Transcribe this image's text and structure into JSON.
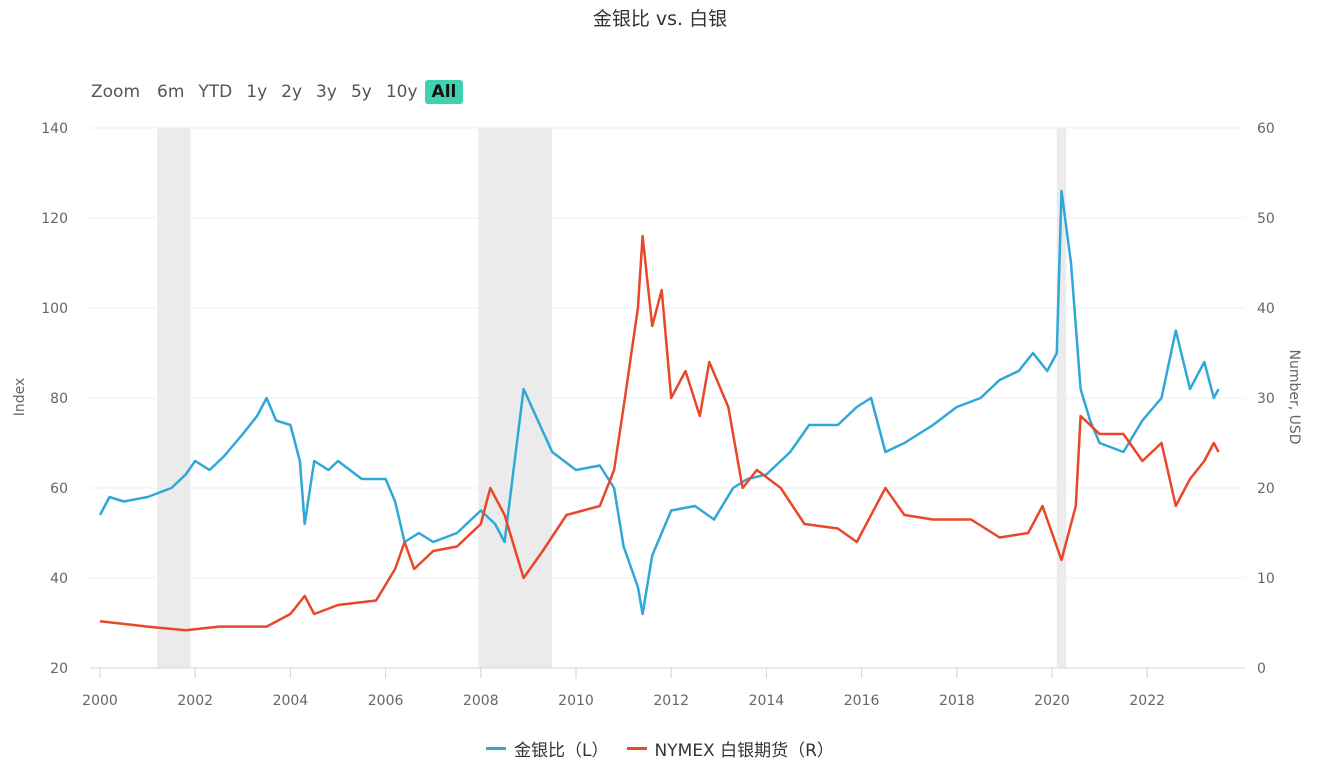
{
  "chart_data": {
    "type": "line",
    "title": "金银比 vs. 白银",
    "range_selector": {
      "label": "Zoom",
      "buttons": [
        "6m",
        "YTD",
        "1y",
        "2y",
        "3y",
        "5y",
        "10y",
        "All"
      ],
      "selected": "All"
    },
    "xlim": [
      2000,
      2023.8
    ],
    "x_ticks": [
      "2000",
      "2002",
      "2004",
      "2006",
      "2008",
      "2010",
      "2012",
      "2014",
      "2016",
      "2018",
      "2020",
      "2022"
    ],
    "y_left": {
      "label": "Index",
      "lim": [
        20,
        140
      ],
      "ticks": [
        "20",
        "40",
        "60",
        "80",
        "100",
        "120",
        "140"
      ]
    },
    "y_right": {
      "label": "Number, USD",
      "lim": [
        0,
        60
      ],
      "ticks": [
        "0",
        "10",
        "20",
        "30",
        "40",
        "50",
        "60"
      ]
    },
    "grid": true,
    "legend_position": "bottom",
    "shaded_periods": [
      [
        2001.2,
        2001.9
      ],
      [
        2007.95,
        2009.5
      ],
      [
        2020.1,
        2020.3
      ]
    ],
    "colors": {
      "ratio": "#2fa8d8",
      "silver": "#e8472a",
      "shade": "#ebebeb"
    },
    "series": [
      {
        "name": "金银比（L）",
        "axis": "left",
        "points": [
          [
            2000.0,
            54
          ],
          [
            2000.2,
            58
          ],
          [
            2000.5,
            57
          ],
          [
            2001.0,
            58
          ],
          [
            2001.5,
            60
          ],
          [
            2001.8,
            63
          ],
          [
            2002.0,
            66
          ],
          [
            2002.3,
            64
          ],
          [
            2002.6,
            67
          ],
          [
            2003.0,
            72
          ],
          [
            2003.3,
            76
          ],
          [
            2003.5,
            80
          ],
          [
            2003.7,
            75
          ],
          [
            2004.0,
            74
          ],
          [
            2004.2,
            66
          ],
          [
            2004.3,
            52
          ],
          [
            2004.5,
            66
          ],
          [
            2004.8,
            64
          ],
          [
            2005.0,
            66
          ],
          [
            2005.5,
            62
          ],
          [
            2006.0,
            62
          ],
          [
            2006.2,
            57
          ],
          [
            2006.4,
            48
          ],
          [
            2006.7,
            50
          ],
          [
            2007.0,
            48
          ],
          [
            2007.5,
            50
          ],
          [
            2008.0,
            55
          ],
          [
            2008.3,
            52
          ],
          [
            2008.5,
            48
          ],
          [
            2008.7,
            65
          ],
          [
            2008.9,
            82
          ],
          [
            2009.2,
            75
          ],
          [
            2009.5,
            68
          ],
          [
            2010.0,
            64
          ],
          [
            2010.5,
            65
          ],
          [
            2010.8,
            60
          ],
          [
            2011.0,
            47
          ],
          [
            2011.3,
            38
          ],
          [
            2011.4,
            32
          ],
          [
            2011.6,
            45
          ],
          [
            2012.0,
            55
          ],
          [
            2012.5,
            56
          ],
          [
            2012.9,
            53
          ],
          [
            2013.3,
            60
          ],
          [
            2013.6,
            62
          ],
          [
            2014.0,
            63
          ],
          [
            2014.5,
            68
          ],
          [
            2014.9,
            74
          ],
          [
            2015.5,
            74
          ],
          [
            2015.9,
            78
          ],
          [
            2016.2,
            80
          ],
          [
            2016.5,
            68
          ],
          [
            2016.9,
            70
          ],
          [
            2017.5,
            74
          ],
          [
            2018.0,
            78
          ],
          [
            2018.5,
            80
          ],
          [
            2018.9,
            84
          ],
          [
            2019.3,
            86
          ],
          [
            2019.6,
            90
          ],
          [
            2019.9,
            86
          ],
          [
            2020.1,
            90
          ],
          [
            2020.2,
            126
          ],
          [
            2020.4,
            110
          ],
          [
            2020.6,
            82
          ],
          [
            2020.8,
            75
          ],
          [
            2021.0,
            70
          ],
          [
            2021.5,
            68
          ],
          [
            2021.9,
            75
          ],
          [
            2022.3,
            80
          ],
          [
            2022.6,
            95
          ],
          [
            2022.9,
            82
          ],
          [
            2023.2,
            88
          ],
          [
            2023.4,
            80
          ],
          [
            2023.5,
            82
          ]
        ]
      },
      {
        "name": "NYMEX 白银期货（R）",
        "axis": "right",
        "points": [
          [
            2000.0,
            5.2
          ],
          [
            2001.0,
            4.6
          ],
          [
            2001.8,
            4.2
          ],
          [
            2002.5,
            4.6
          ],
          [
            2003.5,
            4.6
          ],
          [
            2004.0,
            6.0
          ],
          [
            2004.3,
            8.0
          ],
          [
            2004.5,
            6.0
          ],
          [
            2005.0,
            7.0
          ],
          [
            2005.8,
            7.5
          ],
          [
            2006.2,
            11
          ],
          [
            2006.4,
            14
          ],
          [
            2006.6,
            11
          ],
          [
            2007.0,
            13
          ],
          [
            2007.5,
            13.5
          ],
          [
            2008.0,
            16
          ],
          [
            2008.2,
            20
          ],
          [
            2008.5,
            17
          ],
          [
            2008.9,
            10
          ],
          [
            2009.3,
            13
          ],
          [
            2009.8,
            17
          ],
          [
            2010.5,
            18
          ],
          [
            2010.8,
            22
          ],
          [
            2011.0,
            29
          ],
          [
            2011.3,
            40
          ],
          [
            2011.4,
            48
          ],
          [
            2011.6,
            38
          ],
          [
            2011.8,
            42
          ],
          [
            2012.0,
            30
          ],
          [
            2012.3,
            33
          ],
          [
            2012.6,
            28
          ],
          [
            2012.8,
            34
          ],
          [
            2013.2,
            29
          ],
          [
            2013.5,
            20
          ],
          [
            2013.8,
            22
          ],
          [
            2014.3,
            20
          ],
          [
            2014.8,
            16
          ],
          [
            2015.5,
            15.5
          ],
          [
            2015.9,
            14
          ],
          [
            2016.5,
            20
          ],
          [
            2016.9,
            17
          ],
          [
            2017.5,
            16.5
          ],
          [
            2018.3,
            16.5
          ],
          [
            2018.9,
            14.5
          ],
          [
            2019.5,
            15
          ],
          [
            2019.8,
            18
          ],
          [
            2020.2,
            12
          ],
          [
            2020.5,
            18
          ],
          [
            2020.6,
            28
          ],
          [
            2021.0,
            26
          ],
          [
            2021.5,
            26
          ],
          [
            2021.9,
            23
          ],
          [
            2022.3,
            25
          ],
          [
            2022.6,
            18
          ],
          [
            2022.9,
            21
          ],
          [
            2023.2,
            23
          ],
          [
            2023.4,
            25
          ],
          [
            2023.5,
            24
          ]
        ]
      }
    ]
  }
}
